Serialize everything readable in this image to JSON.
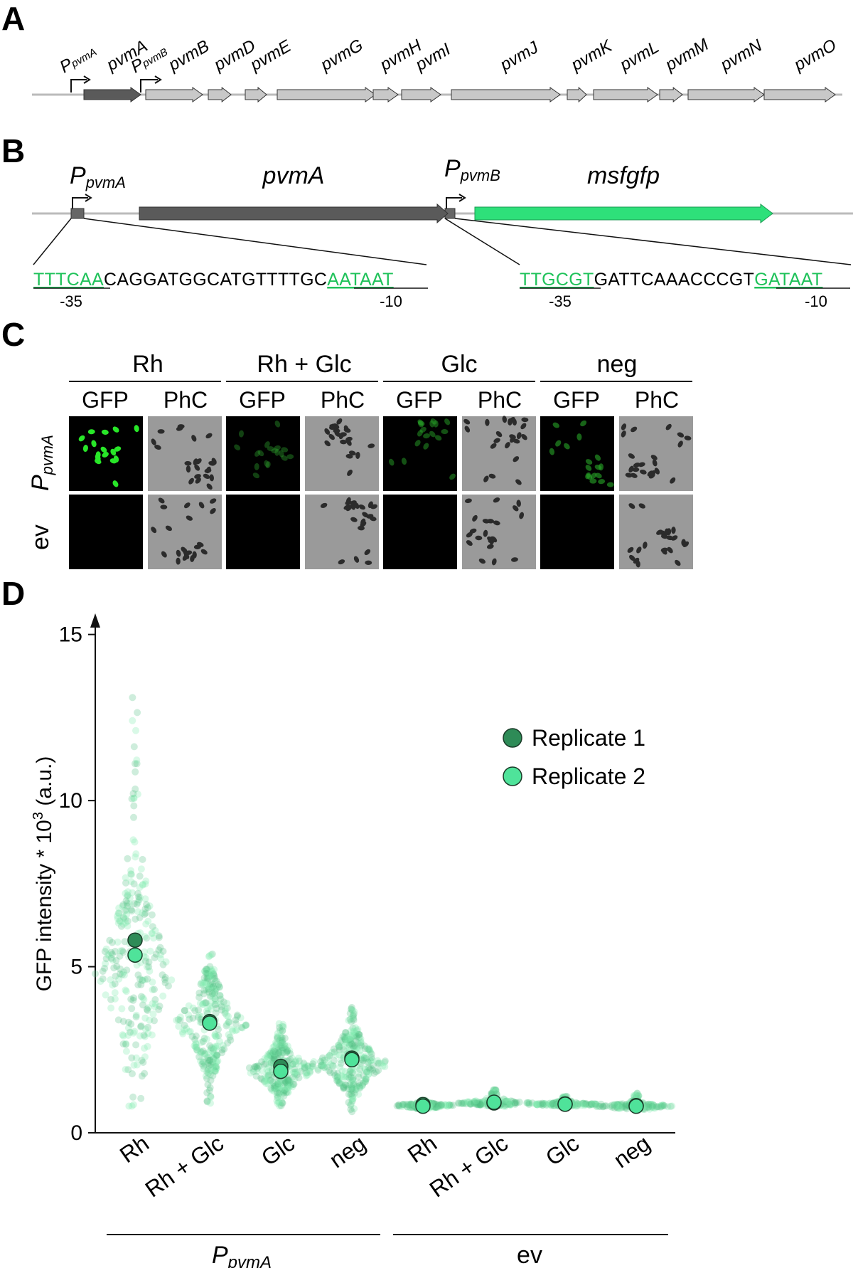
{
  "panels": {
    "a": {
      "letter": "A",
      "promoters": [
        {
          "base": "P",
          "sub": "pvmA"
        },
        {
          "base": "P",
          "sub": "pvmB"
        }
      ],
      "genes": [
        "pvmA",
        "pvmB",
        "pvmD",
        "pvmE",
        "pvmG",
        "pvmH",
        "pvmI",
        "pvmJ",
        "pvmK",
        "pvmL",
        "pvmM",
        "pvmN",
        "pvmO"
      ]
    },
    "b": {
      "letter": "B",
      "promoter_a": {
        "base": "P",
        "sub": "pvmA"
      },
      "promoter_b": {
        "base": "P",
        "sub": "pvmB"
      },
      "gene_a": "pvmA",
      "gene_b": "msfgfp",
      "seq_a": {
        "box35": "TTTCAA",
        "middle": "CAGGATGGCATGTTTTGC",
        "box10": "AATAAT",
        "label35": "-35",
        "label10": "-10"
      },
      "seq_b": {
        "box35": "TTGCGT",
        "middle": "GATTCAAACCCGT",
        "box10": "GATAAT",
        "label35": "-35",
        "label10": "-10"
      }
    },
    "c": {
      "letter": "C",
      "conditions": [
        "Rh",
        "Rh + Glc",
        "Glc",
        "neg"
      ],
      "channels": [
        "GFP",
        "PhC"
      ],
      "rows": [
        {
          "base": "P",
          "sub": "pvmA"
        },
        {
          "base": "ev",
          "sub": ""
        }
      ]
    },
    "d": {
      "letter": "D"
    }
  },
  "chart_data": {
    "type": "scatter",
    "title": "",
    "ylabel": "GFP intensity * 10",
    "ylabel_superscript": "3",
    "ylabel_unit": "(a.u.)",
    "ylim": [
      0,
      16
    ],
    "yticks": [
      "0",
      "5",
      "10",
      "15"
    ],
    "grid": false,
    "legend_position": "top-right",
    "categories": [
      "Rh",
      "Rh + Glc",
      "Glc",
      "neg",
      "Rh",
      "Rh + Glc",
      "Glc",
      "neg"
    ],
    "groups": [
      {
        "base": "P",
        "sub": "pvmA",
        "categories": [
          0,
          1,
          2,
          3
        ]
      },
      {
        "base": "ev",
        "sub": "",
        "categories": [
          4,
          5,
          6,
          7
        ]
      }
    ],
    "series": [
      {
        "name": "Replicate 1",
        "color": "#2e8b57",
        "values": [
          5.8,
          3.35,
          2.0,
          2.25,
          0.85,
          0.9,
          0.87,
          0.82
        ]
      },
      {
        "name": "Replicate 2",
        "color": "#4fe39a",
        "values": [
          5.35,
          3.3,
          1.85,
          2.2,
          0.8,
          0.92,
          0.86,
          0.8
        ]
      }
    ],
    "distributions": [
      {
        "min": 0.7,
        "max": 13.3,
        "center": 4.8
      },
      {
        "min": 0.8,
        "max": 5.4,
        "center": 3.3
      },
      {
        "min": 0.8,
        "max": 3.3,
        "center": 1.9
      },
      {
        "min": 0.6,
        "max": 3.8,
        "center": 2.1
      },
      {
        "min": 0.7,
        "max": 1.0,
        "center": 0.82
      },
      {
        "min": 0.8,
        "max": 1.3,
        "center": 0.9
      },
      {
        "min": 0.8,
        "max": 1.1,
        "center": 0.86
      },
      {
        "min": 0.7,
        "max": 1.2,
        "center": 0.8
      }
    ]
  }
}
